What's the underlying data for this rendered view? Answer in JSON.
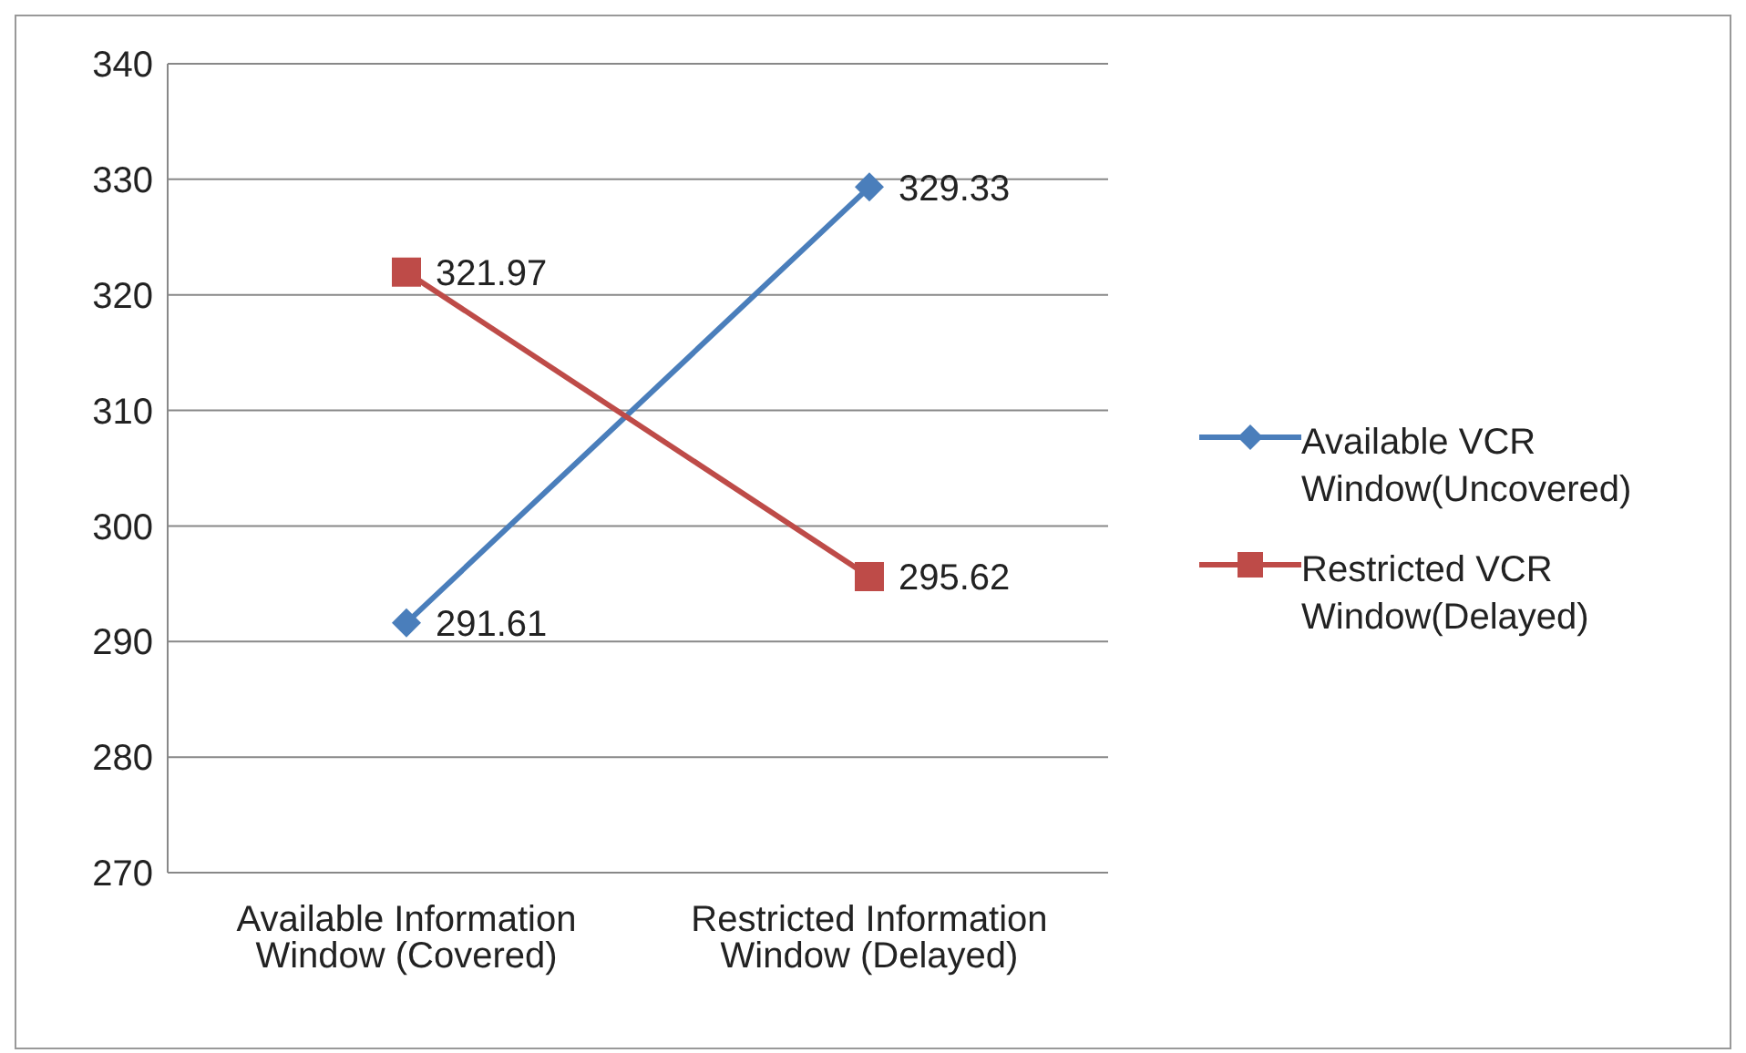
{
  "chart_data": {
    "type": "line",
    "categories": [
      "Available Information Window (Covered)",
      "Restricted Information Window (Delayed)"
    ],
    "series": [
      {
        "name": "Available VCR Window(Uncovered)",
        "color": "#4a7ebb",
        "marker": "diamond",
        "values": [
          291.61,
          329.33
        ]
      },
      {
        "name": "Restricted VCR Window(Delayed)",
        "color": "#be4b48",
        "marker": "square",
        "values": [
          321.97,
          295.62
        ]
      }
    ],
    "ylim": [
      270,
      340
    ],
    "yticks": [
      270,
      280,
      290,
      300,
      310,
      320,
      330,
      340
    ],
    "grid": "y",
    "legend": "right",
    "data_labels": true
  }
}
